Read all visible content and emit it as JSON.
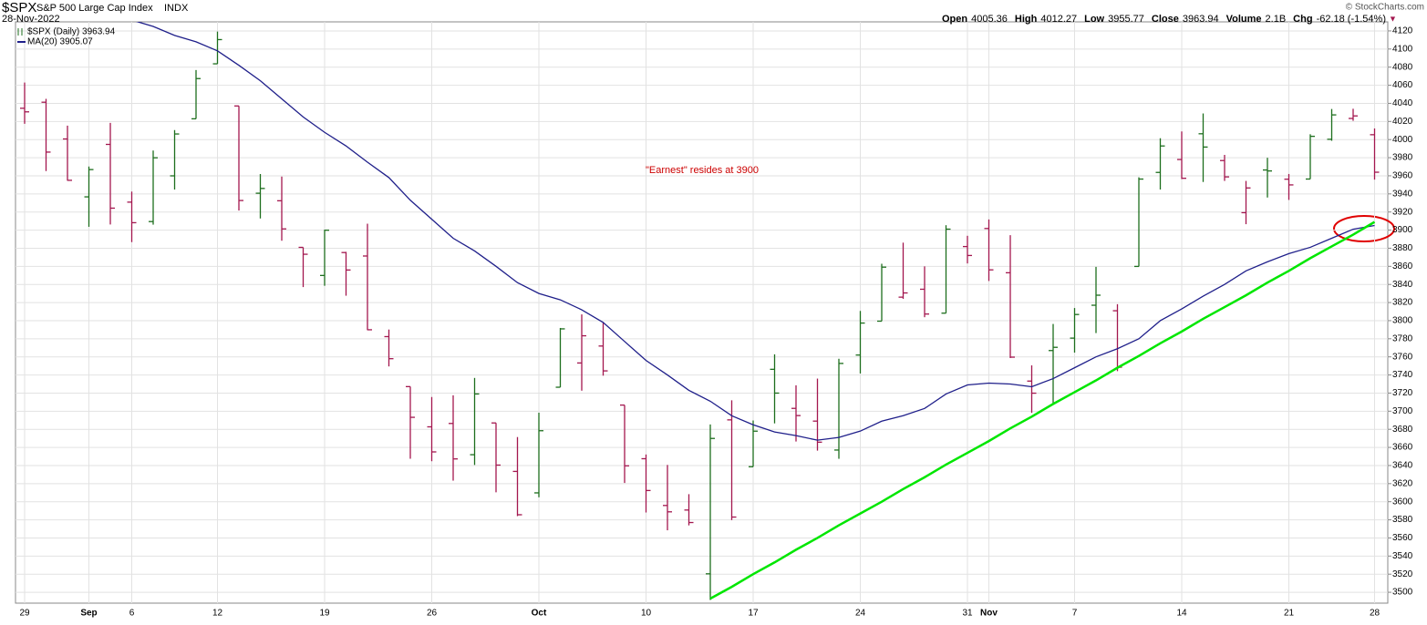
{
  "header": {
    "symbol": "$SPX",
    "name": "S&P 500 Large Cap Index",
    "exchange": "INDX",
    "date": "28-Nov-2022",
    "credit": "© StockCharts.com",
    "stats": [
      {
        "label": "Open",
        "value": "4005.36"
      },
      {
        "label": "High",
        "value": "4012.27"
      },
      {
        "label": "Low",
        "value": "3955.77"
      },
      {
        "label": "Close",
        "value": "3963.94"
      },
      {
        "label": "Volume",
        "value": "2.1B"
      },
      {
        "label": "Chg",
        "value": "-62.18 (-1.54%)"
      }
    ]
  },
  "chart_data": {
    "type": "ohlc",
    "legend": [
      "$SPX (Daily) 3963.94",
      "MA(20) 3905.07"
    ],
    "annotation": "\"Earnest\" resides at 3900",
    "up_color": "#1d6e1d",
    "down_color": "#a3174f",
    "grid": true,
    "categories": [
      "29",
      null,
      null,
      "Sep",
      null,
      "6",
      null,
      null,
      null,
      "12",
      null,
      null,
      null,
      null,
      "19",
      null,
      null,
      null,
      null,
      "26",
      null,
      null,
      null,
      null,
      "Oct",
      null,
      null,
      null,
      null,
      "10",
      null,
      null,
      null,
      null,
      "17",
      null,
      null,
      null,
      null,
      "24",
      null,
      null,
      null,
      null,
      "31",
      "Nov",
      null,
      null,
      null,
      "7",
      null,
      null,
      null,
      null,
      "14",
      null,
      null,
      null,
      null,
      "21",
      null,
      null,
      null,
      "28"
    ],
    "open": [
      4034.58,
      4041.25,
      4000.67,
      3936.73,
      3994.66,
      3930.89,
      3909.43,
      3959.94,
      4022.94,
      4083.67,
      4037.12,
      3940.73,
      3932.41,
      3880.95,
      3849.91,
      3875.23,
      3871.4,
      3782.36,
      3727.14,
      3682.72,
      3686.44,
      3651.94,
      3687.01,
      3633.48,
      3609.78,
      3726.46,
      3753.25,
      3771.97,
      3706.74,
      3647.51,
      3595.86,
      3590.83,
      3520.37,
      3690.41,
      3638.65,
      3746.26,
      3703.11,
      3689.05,
      3657.1,
      3762.01,
      3799.44,
      3825.97,
      3834.69,
      3808.26,
      3881.85,
      3901.79,
      3852.9,
      3733.25,
      3766.98,
      3780.71,
      3817.02,
      3810.94,
      3859.89,
      3963.72,
      3977.97,
      4006.41,
      3976.82,
      3919.26,
      3966.39,
      3956.23,
      3956.4,
      4000.3,
      4023.34,
      4005.36
    ],
    "high": [
      4062.99,
      4044.98,
      4015.37,
      3970.23,
      4018.43,
      3942.55,
      3987.89,
      4010.5,
      4076.81,
      4119.28,
      4037.12,
      3961.94,
      3959.14,
      3880.95,
      3900.45,
      3876.01,
      3907.07,
      3790.2,
      3727.14,
      3715.67,
      3717.53,
      3736.74,
      3687.01,
      3671.44,
      3698.35,
      3791.92,
      3806.91,
      3797.93,
      3706.74,
      3652.17,
      3640.66,
      3608.34,
      3685.41,
      3712,
      3689.73,
      3762.79,
      3728.58,
      3736,
      3757.89,
      3810.74,
      3862.85,
      3886.15,
      3859.95,
      3905.42,
      3893.73,
      3911.79,
      3894.44,
      3750.59,
      3796.34,
      3813.95,
      3859.4,
      3818.2,
      3958.33,
      4001.48,
      4008.97,
      4028.84,
      3983.09,
      3954.33,
      3979.89,
      3962,
      4005.88,
      4033.78,
      4034.02,
      4012.27
    ],
    "low": [
      4017.42,
      3965.21,
      3954.53,
      3903.65,
      3906.21,
      3886.75,
      3906.03,
      3944.81,
      4022.94,
      4083.67,
      3921.63,
      3912.85,
      3888.28,
      3837.08,
      3838.5,
      3827.54,
      3789.49,
      3749.45,
      3647.47,
      3644.76,
      3623.29,
      3640.61,
      3610.4,
      3584.13,
      3604.93,
      3726.46,
      3722.66,
      3739.22,
      3620.73,
      3588.1,
      3568.45,
      3573.86,
      3491.58,
      3579.68,
      3638.65,
      3686.53,
      3666.51,
      3656.44,
      3647.42,
      3741.65,
      3799.44,
      3824.07,
      3803.79,
      3808.26,
      3863.18,
      3843.8,
      3758.68,
      3698.15,
      3708.84,
      3764.7,
      3786.28,
      3744.22,
      3859.89,
      3944.82,
      3956.4,
      3953.17,
      3954.34,
      3906.54,
      3935.98,
      3933.34,
      3956.4,
      3998.66,
      4020.76,
      3955.77
    ],
    "close": [
      4030.61,
      3986.16,
      3955,
      3966.85,
      3924.26,
      3908.19,
      3979.87,
      4006.18,
      4067.36,
      4110.41,
      3932.69,
      3946.01,
      3901.35,
      3873.33,
      3899.89,
      3855.93,
      3789.93,
      3757.99,
      3693.23,
      3655.04,
      3647.29,
      3719.04,
      3640.47,
      3585.62,
      3678.43,
      3790.93,
      3783.28,
      3744.52,
      3639.66,
      3612.39,
      3588.84,
      3577.03,
      3669.91,
      3583.07,
      3677.95,
      3719.98,
      3695.16,
      3665.78,
      3752.75,
      3797.34,
      3859.11,
      3830.6,
      3807.3,
      3901.06,
      3871.98,
      3856.1,
      3759.69,
      3719.89,
      3770.55,
      3806.8,
      3828.11,
      3748.57,
      3956.37,
      3992.93,
      3957.25,
      3991.73,
      3958.79,
      3946.56,
      3965.34,
      3949.94,
      4003.58,
      4027.26,
      4026.12,
      3963.94
    ],
    "series": [
      {
        "name": "MA(20)",
        "color": "#1f1f8a",
        "values": [
          null,
          null,
          null,
          null,
          null,
          4132,
          4125,
          4115,
          4108,
          4098,
          4082,
          4065,
          4045,
          4025,
          4008,
          3993,
          3975,
          3958,
          3933,
          3912,
          3891,
          3877,
          3860,
          3842,
          3830,
          3823,
          3812,
          3798,
          3777,
          3756,
          3740,
          3723,
          3711,
          3695,
          3685,
          3677,
          3673,
          3668,
          3671,
          3678,
          3689,
          3695,
          3703,
          3719,
          3729,
          3731,
          3730,
          3727,
          3736,
          3748,
          3760,
          3769,
          3780,
          3800,
          3813,
          3827,
          3840,
          3855,
          3865,
          3874,
          3881,
          3891,
          3901,
          3905.07
        ]
      },
      {
        "name": "trendline",
        "color": "#00e600",
        "values": [
          null,
          null,
          null,
          null,
          null,
          null,
          null,
          null,
          null,
          null,
          null,
          null,
          null,
          null,
          null,
          null,
          null,
          null,
          null,
          null,
          null,
          null,
          null,
          null,
          null,
          null,
          null,
          null,
          null,
          null,
          null,
          null,
          3493,
          3506,
          3520,
          3533,
          3547,
          3560,
          3574,
          3587,
          3600,
          3614,
          3627,
          3641,
          3654,
          3667,
          3681,
          3694,
          3708,
          3721,
          3734,
          3748,
          3761,
          3775,
          3788,
          3802,
          3815,
          3828,
          3842,
          3855,
          3869,
          3882,
          3895,
          3909
        ]
      }
    ],
    "ylim": [
      3488,
      4130
    ],
    "yticks": [
      3500,
      3520,
      3540,
      3560,
      3580,
      3600,
      3620,
      3640,
      3660,
      3680,
      3700,
      3720,
      3740,
      3760,
      3780,
      3800,
      3820,
      3840,
      3860,
      3880,
      3900,
      3920,
      3940,
      3960,
      3980,
      4000,
      4020,
      4040,
      4060,
      4080,
      4100,
      4120
    ]
  }
}
